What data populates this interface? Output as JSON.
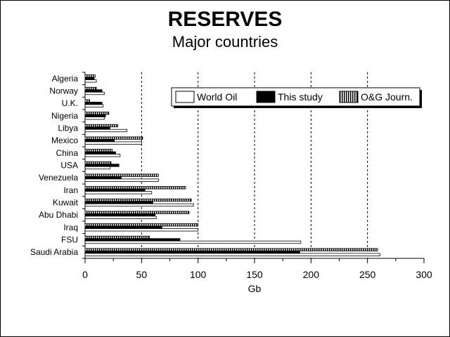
{
  "chart_data": {
    "type": "bar",
    "orientation": "horizontal",
    "title": "RESERVES",
    "subtitle": "Major countries",
    "xlabel": "Gb",
    "ylabel": "",
    "xlim": [
      0,
      300
    ],
    "xticks": [
      0,
      50,
      100,
      150,
      200,
      250,
      300
    ],
    "grid": "vertical dashed at 50, 100, 150, 200, 250",
    "legend_position": "top-right",
    "categories": [
      "Algeria",
      "Norway",
      "U.K.",
      "Nigeria",
      "Libya",
      "Mexico",
      "China",
      "USA",
      "Venezuela",
      "Iran",
      "Kuwait",
      "Abu Dhabi",
      "Iraq",
      "FSU",
      "Saudi Arabia"
    ],
    "series": [
      {
        "name": "World Oil",
        "pattern": "white",
        "values": [
          10,
          17,
          16,
          17,
          37,
          50,
          31,
          22,
          65,
          59,
          96,
          63,
          100,
          191,
          261
        ]
      },
      {
        "name": "This study",
        "pattern": "black",
        "values": [
          8,
          15,
          15,
          18,
          22,
          26,
          27,
          30,
          32,
          53,
          60,
          62,
          68,
          84,
          190
        ]
      },
      {
        "name": "O&G Journ.",
        "pattern": "vertical-stripes",
        "values": [
          9,
          10,
          4,
          21,
          29,
          51,
          24,
          23,
          65,
          89,
          94,
          92,
          100,
          57,
          259
        ]
      }
    ]
  },
  "colors": {
    "foreground": "#000000",
    "background": "#ffffff"
  }
}
